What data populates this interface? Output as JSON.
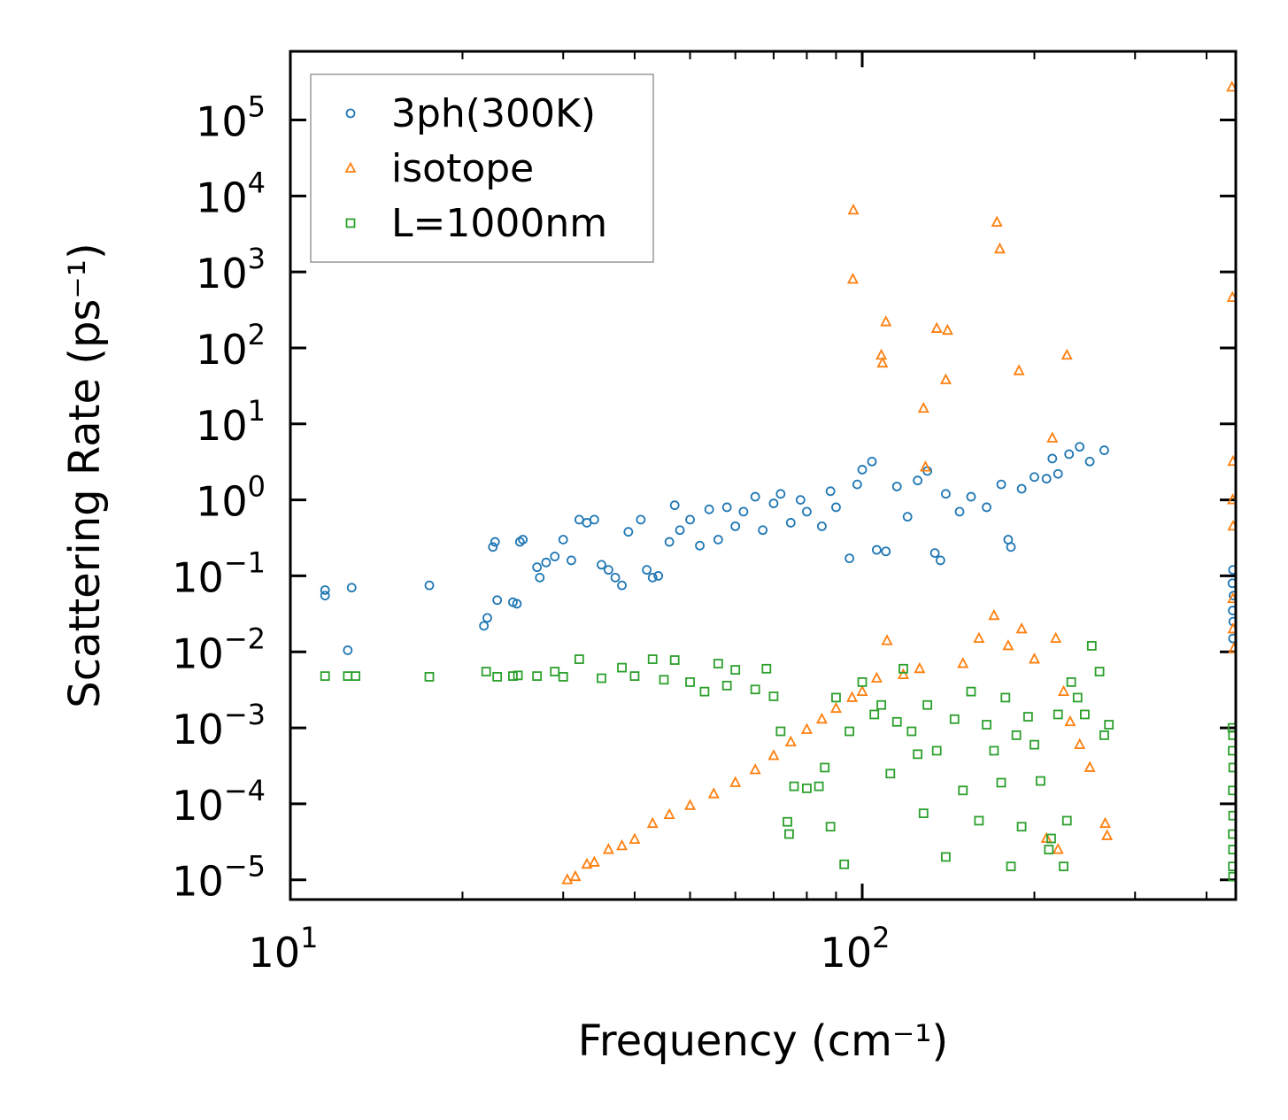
{
  "chart_data": {
    "type": "scatter",
    "xscale": "log",
    "yscale": "log",
    "xlim": [
      10,
      450
    ],
    "ylim": [
      5.5e-06,
      800000
    ],
    "xlabel": "Frequency (cm⁻¹)",
    "ylabel": "Scattering Rate (ps⁻¹)",
    "xticks": [
      {
        "value": 10,
        "base": "10",
        "exp": "1"
      },
      {
        "value": 100,
        "base": "10",
        "exp": "2"
      }
    ],
    "yticks": [
      {
        "value": 1e-05,
        "base": "10",
        "exp": "−5"
      },
      {
        "value": 0.0001,
        "base": "10",
        "exp": "−4"
      },
      {
        "value": 0.001,
        "base": "10",
        "exp": "−3"
      },
      {
        "value": 0.01,
        "base": "10",
        "exp": "−2"
      },
      {
        "value": 0.1,
        "base": "10",
        "exp": "−1"
      },
      {
        "value": 1,
        "base": "10",
        "exp": "0"
      },
      {
        "value": 10,
        "base": "10",
        "exp": "1"
      },
      {
        "value": 100,
        "base": "10",
        "exp": "2"
      },
      {
        "value": 1000,
        "base": "10",
        "exp": "3"
      },
      {
        "value": 10000,
        "base": "10",
        "exp": "4"
      },
      {
        "value": 100000,
        "base": "10",
        "exp": "5"
      }
    ],
    "legend_position": "top-left",
    "series": [
      {
        "name": "3ph(300K)",
        "marker": "circle",
        "color": "#1f77b4",
        "points": [
          [
            11.5,
            0.065
          ],
          [
            11.5,
            0.055
          ],
          [
            12.8,
            0.07
          ],
          [
            12.6,
            0.0105
          ],
          [
            17.5,
            0.075
          ],
          [
            21.8,
            0.022
          ],
          [
            22.1,
            0.028
          ],
          [
            22.6,
            0.24
          ],
          [
            22.8,
            0.28
          ],
          [
            23.0,
            0.048
          ],
          [
            24.5,
            0.045
          ],
          [
            24.9,
            0.043
          ],
          [
            25.2,
            0.28
          ],
          [
            25.5,
            0.3
          ],
          [
            27.0,
            0.13
          ],
          [
            27.3,
            0.095
          ],
          [
            28.0,
            0.15
          ],
          [
            29.0,
            0.18
          ],
          [
            30.0,
            0.3
          ],
          [
            31.0,
            0.16
          ],
          [
            32.0,
            0.55
          ],
          [
            33.0,
            0.5
          ],
          [
            34.0,
            0.55
          ],
          [
            35.0,
            0.14
          ],
          [
            36.0,
            0.12
          ],
          [
            37.0,
            0.095
          ],
          [
            38.0,
            0.075
          ],
          [
            39.0,
            0.38
          ],
          [
            41.0,
            0.55
          ],
          [
            42.0,
            0.12
          ],
          [
            43.0,
            0.095
          ],
          [
            44.0,
            0.1
          ],
          [
            46.0,
            0.28
          ],
          [
            47.0,
            0.85
          ],
          [
            48.0,
            0.4
          ],
          [
            50.0,
            0.55
          ],
          [
            52.0,
            0.25
          ],
          [
            54.0,
            0.75
          ],
          [
            56.0,
            0.3
          ],
          [
            58.0,
            0.8
          ],
          [
            60.0,
            0.45
          ],
          [
            62.0,
            0.7
          ],
          [
            65.0,
            1.1
          ],
          [
            67.0,
            0.4
          ],
          [
            70.0,
            0.9
          ],
          [
            72.0,
            1.2
          ],
          [
            75.0,
            0.5
          ],
          [
            78.0,
            1.0
          ],
          [
            80.0,
            0.7
          ],
          [
            85.0,
            0.45
          ],
          [
            88.0,
            1.3
          ],
          [
            90.0,
            0.8
          ],
          [
            95.0,
            0.17
          ],
          [
            98.0,
            1.6
          ],
          [
            100.0,
            2.5
          ],
          [
            104.0,
            3.2
          ],
          [
            106.0,
            0.22
          ],
          [
            110.0,
            0.21
          ],
          [
            115.0,
            1.5
          ],
          [
            120.0,
            0.6
          ],
          [
            125.0,
            1.8
          ],
          [
            130.0,
            2.4
          ],
          [
            134.0,
            0.2
          ],
          [
            137.0,
            0.16
          ],
          [
            140.0,
            1.2
          ],
          [
            148.0,
            0.7
          ],
          [
            155.0,
            1.1
          ],
          [
            165.0,
            0.8
          ],
          [
            175.0,
            1.6
          ],
          [
            180.0,
            0.3
          ],
          [
            182.0,
            0.24
          ],
          [
            190.0,
            1.4
          ],
          [
            200.0,
            2.0
          ],
          [
            210.0,
            1.9
          ],
          [
            215.0,
            3.5
          ],
          [
            220.0,
            2.2
          ],
          [
            230.0,
            4.0
          ],
          [
            240.0,
            5.0
          ],
          [
            250.0,
            3.2
          ],
          [
            265.0,
            4.5
          ],
          [
            445.0,
            0.12
          ],
          [
            444.0,
            0.08
          ],
          [
            446.0,
            0.055
          ],
          [
            444.5,
            0.035
          ],
          [
            445.5,
            0.025
          ],
          [
            445.0,
            0.015
          ]
        ]
      },
      {
        "name": "isotope",
        "marker": "triangle",
        "color": "#ff7f0e",
        "points": [
          [
            30.5,
            1e-05
          ],
          [
            31.5,
            1.1e-05
          ],
          [
            33.0,
            1.6e-05
          ],
          [
            34.0,
            1.7e-05
          ],
          [
            36.0,
            2.5e-05
          ],
          [
            38.0,
            2.8e-05
          ],
          [
            40.0,
            3.4e-05
          ],
          [
            43.0,
            5.5e-05
          ],
          [
            46.0,
            7.2e-05
          ],
          [
            50.0,
            9.5e-05
          ],
          [
            55.0,
            0.000135
          ],
          [
            60.0,
            0.00019
          ],
          [
            65.0,
            0.00028
          ],
          [
            70.0,
            0.00043
          ],
          [
            75.0,
            0.00065
          ],
          [
            80.0,
            0.00095
          ],
          [
            85.0,
            0.0013
          ],
          [
            90.0,
            0.0018
          ],
          [
            96.0,
            0.0025
          ],
          [
            96.5,
            6500
          ],
          [
            96.3,
            800
          ],
          [
            100.0,
            0.003
          ],
          [
            106.0,
            0.0045
          ],
          [
            108.0,
            80
          ],
          [
            108.5,
            63
          ],
          [
            110.0,
            220
          ],
          [
            110.5,
            0.014
          ],
          [
            118.0,
            0.005
          ],
          [
            126.0,
            0.006
          ],
          [
            128.0,
            16
          ],
          [
            129.0,
            2.7
          ],
          [
            135.0,
            180
          ],
          [
            140.0,
            38
          ],
          [
            141.0,
            170
          ],
          [
            150.0,
            0.007
          ],
          [
            160.0,
            0.015
          ],
          [
            170.0,
            0.03
          ],
          [
            172.0,
            4500
          ],
          [
            174.0,
            2000
          ],
          [
            180.0,
            0.012
          ],
          [
            188.0,
            50
          ],
          [
            190.0,
            0.02
          ],
          [
            200.0,
            0.008
          ],
          [
            210.0,
            3.5e-05
          ],
          [
            215.0,
            6.5
          ],
          [
            218.0,
            0.015
          ],
          [
            220.0,
            2.5e-05
          ],
          [
            225.0,
            0.003
          ],
          [
            228.0,
            80
          ],
          [
            231.0,
            0.0012
          ],
          [
            240.0,
            0.0006
          ],
          [
            250.0,
            0.0003
          ],
          [
            266.0,
            5.5e-05
          ],
          [
            268.0,
            3.8e-05
          ],
          [
            443.0,
            270000
          ],
          [
            444.0,
            460
          ],
          [
            445.0,
            3.2
          ],
          [
            444.5,
            1.0
          ],
          [
            445.2,
            0.45
          ],
          [
            444.8,
            0.05
          ],
          [
            445.3,
            0.02
          ],
          [
            446.5,
            0.011
          ]
        ]
      },
      {
        "name": "L=1000nm",
        "marker": "square",
        "color": "#2ca02c",
        "points": [
          [
            11.5,
            0.0048
          ],
          [
            12.6,
            0.0048
          ],
          [
            13.0,
            0.0048
          ],
          [
            17.5,
            0.0047
          ],
          [
            22.0,
            0.0055
          ],
          [
            23.0,
            0.0047
          ],
          [
            24.5,
            0.0048
          ],
          [
            25.0,
            0.0049
          ],
          [
            27.0,
            0.0048
          ],
          [
            29.0,
            0.0055
          ],
          [
            30.0,
            0.0047
          ],
          [
            32.0,
            0.008
          ],
          [
            35.0,
            0.0045
          ],
          [
            38.0,
            0.0062
          ],
          [
            40.0,
            0.0048
          ],
          [
            43.0,
            0.008
          ],
          [
            45.0,
            0.0043
          ],
          [
            47.0,
            0.0078
          ],
          [
            50.0,
            0.004
          ],
          [
            53.0,
            0.003
          ],
          [
            56.0,
            0.007
          ],
          [
            58.0,
            0.0036
          ],
          [
            60.0,
            0.0058
          ],
          [
            65.0,
            0.0032
          ],
          [
            68.0,
            0.006
          ],
          [
            70.0,
            0.0026
          ],
          [
            72.0,
            0.0009
          ],
          [
            74.0,
            5.8e-05
          ],
          [
            74.5,
            4e-05
          ],
          [
            76.0,
            0.00017
          ],
          [
            80.0,
            0.00016
          ],
          [
            84.0,
            0.00017
          ],
          [
            86.0,
            0.0003
          ],
          [
            88.0,
            5e-05
          ],
          [
            90.0,
            0.0025
          ],
          [
            93.0,
            1.6e-05
          ],
          [
            95.0,
            0.0009
          ],
          [
            100.0,
            0.004
          ],
          [
            105.0,
            0.0015
          ],
          [
            108.0,
            0.002
          ],
          [
            112.0,
            0.00025
          ],
          [
            115.0,
            0.0012
          ],
          [
            118.0,
            0.006
          ],
          [
            122.0,
            0.0009
          ],
          [
            125.0,
            0.00045
          ],
          [
            128.0,
            7.5e-05
          ],
          [
            130.0,
            0.002
          ],
          [
            135.0,
            0.0005
          ],
          [
            140.0,
            2e-05
          ],
          [
            145.0,
            0.0013
          ],
          [
            150.0,
            0.00015
          ],
          [
            155.0,
            0.003
          ],
          [
            160.0,
            6e-05
          ],
          [
            165.0,
            0.0011
          ],
          [
            170.0,
            0.0005
          ],
          [
            175.0,
            0.00019
          ],
          [
            178.0,
            0.0025
          ],
          [
            182.0,
            1.5e-05
          ],
          [
            186.0,
            0.0008
          ],
          [
            190.0,
            5e-05
          ],
          [
            195.0,
            0.0014
          ],
          [
            200.0,
            0.0006
          ],
          [
            205.0,
            0.0002
          ],
          [
            212.0,
            2.5e-05
          ],
          [
            214.0,
            3.5e-05
          ],
          [
            220.0,
            0.0015
          ],
          [
            225.0,
            1.5e-05
          ],
          [
            228.0,
            6e-05
          ],
          [
            232.0,
            0.004
          ],
          [
            238.0,
            0.0025
          ],
          [
            245.0,
            0.0015
          ],
          [
            252.0,
            0.012
          ],
          [
            260.0,
            0.0055
          ],
          [
            265.0,
            0.0008
          ],
          [
            270.0,
            0.0011
          ],
          [
            444.0,
            0.001
          ],
          [
            445.0,
            0.0008
          ],
          [
            444.5,
            0.0005
          ],
          [
            445.5,
            0.0003
          ],
          [
            444.8,
            0.00015
          ],
          [
            445.2,
            7e-05
          ],
          [
            444.6,
            4e-05
          ],
          [
            445.0,
            2.5e-05
          ],
          [
            444.8,
            1.5e-05
          ],
          [
            445.1,
            1.1e-05
          ]
        ]
      }
    ]
  }
}
